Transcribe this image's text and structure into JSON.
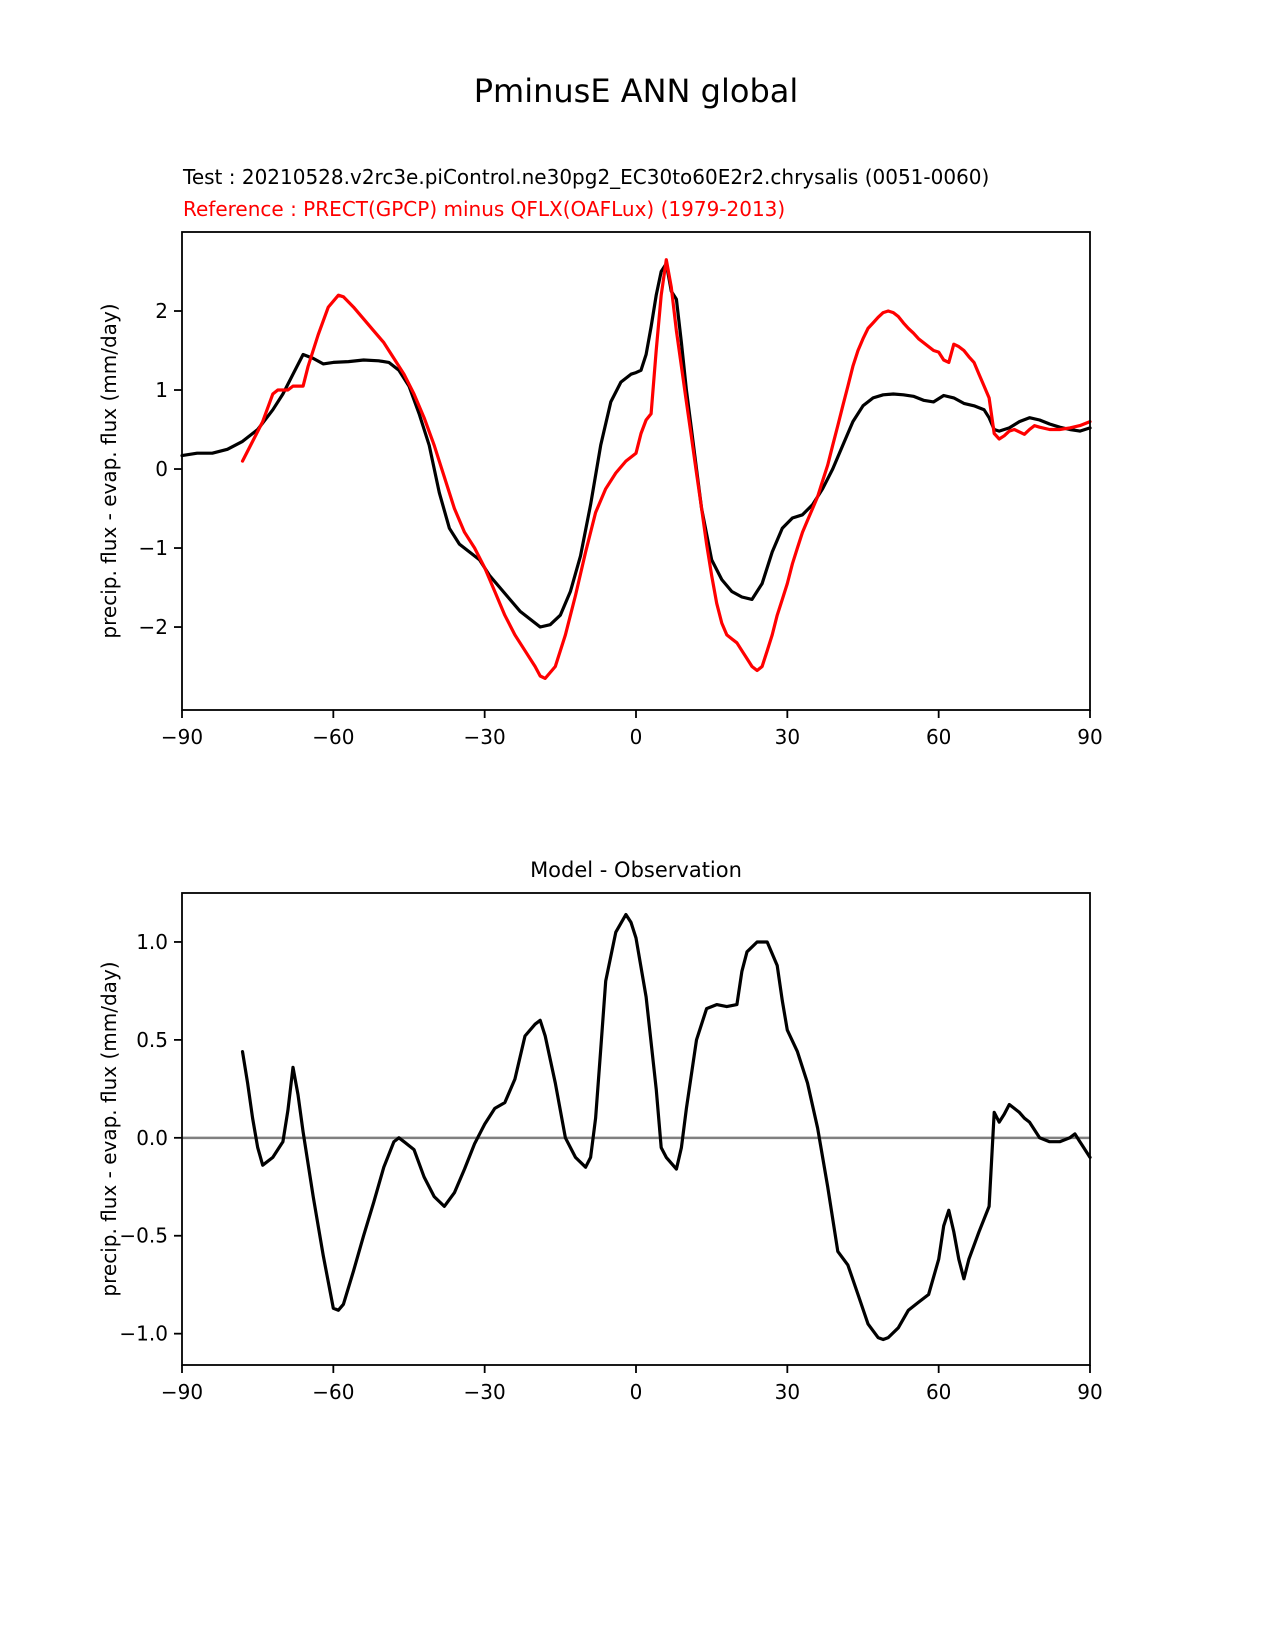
{
  "figure": {
    "title": "PminusE ANN global",
    "test_label": "Test : 20210528.v2rc3e.piControl.ne30pg2_EC30to60E2r2.chrysalis (0051-0060)",
    "reference_label": "Reference : PRECT(GPCP) minus QFLX(OAFLux) (1979-2013)",
    "colors": {
      "test": "#000000",
      "reference": "#ff0000",
      "zero_line": "#808080",
      "frame": "#000000"
    }
  },
  "chart_data": [
    {
      "type": "line",
      "title": "",
      "xlabel": "",
      "ylabel": "precip. flux - evap. flux (mm/day)",
      "xlim": [
        -90,
        90
      ],
      "ylim": [
        -3.05,
        3.0
      ],
      "grid": false,
      "legend": "none",
      "zero_line": false,
      "xticks": [
        -90,
        -60,
        -30,
        0,
        30,
        60,
        90
      ],
      "xtick_labels": [
        "−90",
        "−60",
        "−30",
        "0",
        "30",
        "60",
        "90"
      ],
      "yticks": [
        -2,
        -1,
        0,
        1,
        2
      ],
      "ytick_labels": [
        "−2",
        "−1",
        "0",
        "1",
        "2"
      ],
      "series": [
        {
          "name": "Test",
          "color": "#000000",
          "x": [
            -90,
            -87,
            -84,
            -81,
            -78,
            -75,
            -72,
            -70,
            -68,
            -66,
            -64,
            -62,
            -60,
            -57,
            -54,
            -51,
            -49,
            -47,
            -45,
            -43,
            -41,
            -39,
            -37,
            -35,
            -33,
            -31,
            -29,
            -27,
            -25,
            -23,
            -21,
            -19,
            -17,
            -15,
            -13,
            -11,
            -9,
            -7,
            -5,
            -3,
            -1,
            0,
            1,
            2,
            3,
            4,
            5,
            6,
            7,
            8,
            9,
            10,
            11,
            12,
            13,
            15,
            17,
            19,
            21,
            23,
            25,
            27,
            29,
            31,
            33,
            35,
            37,
            39,
            41,
            43,
            45,
            47,
            49,
            51,
            53,
            55,
            57,
            59,
            61,
            63,
            65,
            67,
            69,
            70,
            71,
            72,
            74,
            76,
            78,
            80,
            82,
            84,
            86,
            88,
            90
          ],
          "y": [
            0.17,
            0.2,
            0.2,
            0.25,
            0.35,
            0.5,
            0.75,
            0.95,
            1.2,
            1.45,
            1.4,
            1.33,
            1.35,
            1.36,
            1.38,
            1.37,
            1.35,
            1.25,
            1.05,
            0.7,
            0.3,
            -0.3,
            -0.75,
            -0.95,
            -1.05,
            -1.15,
            -1.35,
            -1.5,
            -1.65,
            -1.8,
            -1.9,
            -2.0,
            -1.97,
            -1.85,
            -1.55,
            -1.1,
            -0.45,
            0.3,
            0.85,
            1.1,
            1.2,
            1.22,
            1.25,
            1.45,
            1.8,
            2.2,
            2.5,
            2.6,
            2.25,
            2.15,
            1.6,
            1.0,
            0.5,
            0.0,
            -0.5,
            -1.15,
            -1.4,
            -1.55,
            -1.62,
            -1.65,
            -1.45,
            -1.05,
            -0.75,
            -0.62,
            -0.58,
            -0.45,
            -0.25,
            0.0,
            0.3,
            0.6,
            0.8,
            0.9,
            0.94,
            0.95,
            0.94,
            0.92,
            0.87,
            0.85,
            0.93,
            0.9,
            0.83,
            0.8,
            0.75,
            0.65,
            0.5,
            0.48,
            0.52,
            0.6,
            0.65,
            0.62,
            0.57,
            0.53,
            0.5,
            0.48,
            0.52
          ]
        },
        {
          "name": "Reference",
          "color": "#ff0000",
          "x": [
            -78,
            -76,
            -74,
            -72,
            -71,
            -69,
            -68,
            -66,
            -65,
            -63,
            -61,
            -59,
            -58,
            -56,
            -54,
            -52,
            -50,
            -48,
            -46,
            -44,
            -42,
            -40,
            -38,
            -36,
            -34,
            -32,
            -30,
            -28,
            -26,
            -24,
            -22,
            -20,
            -19,
            -18,
            -16,
            -14,
            -12,
            -10,
            -8,
            -6,
            -4,
            -2,
            0,
            1,
            2,
            3,
            4,
            5,
            6,
            7,
            8,
            9,
            10,
            11,
            12,
            13,
            14,
            15,
            16,
            17,
            18,
            19,
            20,
            21,
            22,
            23,
            24,
            25,
            26,
            27,
            28,
            29,
            30,
            31,
            32,
            33,
            34,
            35,
            36,
            37,
            38,
            39,
            40,
            41,
            42,
            43,
            44,
            45,
            46,
            47,
            48,
            49,
            50,
            51,
            52,
            53,
            54,
            55,
            56,
            57,
            58,
            59,
            60,
            61,
            62,
            63,
            64,
            65,
            66,
            67,
            68,
            69,
            70,
            71,
            72,
            73,
            74,
            75,
            76,
            77,
            78,
            79,
            80,
            82,
            84,
            86,
            88,
            90
          ],
          "y": [
            0.1,
            0.35,
            0.6,
            0.95,
            1.0,
            1.0,
            1.05,
            1.05,
            1.3,
            1.7,
            2.05,
            2.2,
            2.18,
            2.05,
            1.9,
            1.75,
            1.6,
            1.4,
            1.2,
            0.95,
            0.65,
            0.3,
            -0.1,
            -0.5,
            -0.8,
            -1.0,
            -1.25,
            -1.55,
            -1.85,
            -2.1,
            -2.3,
            -2.5,
            -2.62,
            -2.65,
            -2.5,
            -2.1,
            -1.6,
            -1.05,
            -0.55,
            -0.25,
            -0.05,
            0.1,
            0.2,
            0.45,
            0.62,
            0.7,
            1.5,
            2.2,
            2.65,
            2.3,
            1.75,
            1.3,
            0.85,
            0.4,
            -0.05,
            -0.5,
            -0.95,
            -1.35,
            -1.7,
            -1.95,
            -2.1,
            -2.15,
            -2.2,
            -2.3,
            -2.4,
            -2.5,
            -2.55,
            -2.5,
            -2.3,
            -2.1,
            -1.85,
            -1.65,
            -1.45,
            -1.2,
            -1.0,
            -0.8,
            -0.65,
            -0.5,
            -0.35,
            -0.15,
            0.05,
            0.3,
            0.55,
            0.8,
            1.05,
            1.3,
            1.5,
            1.65,
            1.78,
            1.85,
            1.92,
            1.98,
            2.0,
            1.98,
            1.93,
            1.85,
            1.78,
            1.72,
            1.65,
            1.6,
            1.55,
            1.5,
            1.48,
            1.38,
            1.35,
            1.58,
            1.55,
            1.5,
            1.42,
            1.35,
            1.2,
            1.05,
            0.9,
            0.45,
            0.38,
            0.42,
            0.48,
            0.5,
            0.47,
            0.44,
            0.5,
            0.55,
            0.53,
            0.5,
            0.5,
            0.52,
            0.55,
            0.6
          ]
        }
      ]
    },
    {
      "type": "line",
      "title": "Model - Observation",
      "xlabel": "",
      "ylabel": "precip. flux - evap. flux (mm/day)",
      "xlim": [
        -90,
        90
      ],
      "ylim": [
        -1.16,
        1.25
      ],
      "grid": false,
      "legend": "none",
      "zero_line": true,
      "xticks": [
        -90,
        -60,
        -30,
        0,
        30,
        60,
        90
      ],
      "xtick_labels": [
        "−90",
        "−60",
        "−30",
        "0",
        "30",
        "60",
        "90"
      ],
      "yticks": [
        -1.0,
        -0.5,
        0.0,
        0.5,
        1.0
      ],
      "ytick_labels": [
        "−1.0",
        "−0.5",
        "0.0",
        "0.5",
        "1.0"
      ],
      "series": [
        {
          "name": "Model minus Observation",
          "color": "#000000",
          "x": [
            -78,
            -77,
            -76,
            -75,
            -74,
            -72,
            -70,
            -69,
            -68,
            -67,
            -66,
            -64,
            -62,
            -60,
            -59,
            -58,
            -56,
            -54,
            -52,
            -50,
            -48,
            -47,
            -46,
            -44,
            -42,
            -40,
            -38,
            -36,
            -34,
            -32,
            -30,
            -28,
            -26,
            -24,
            -22,
            -20,
            -19,
            -18,
            -16,
            -14,
            -12,
            -10,
            -9,
            -8,
            -7,
            -6,
            -4,
            -2,
            -1,
            0,
            2,
            4,
            5,
            6,
            8,
            9,
            10,
            12,
            14,
            16,
            18,
            20,
            21,
            22,
            24,
            26,
            28,
            29,
            30,
            32,
            34,
            36,
            38,
            40,
            42,
            44,
            46,
            48,
            49,
            50,
            52,
            54,
            56,
            58,
            60,
            61,
            62,
            63,
            64,
            65,
            66,
            68,
            70,
            71,
            72,
            73,
            74,
            75,
            76,
            77,
            78,
            80,
            82,
            84,
            86,
            87,
            88,
            89,
            90
          ],
          "y": [
            0.44,
            0.28,
            0.1,
            -0.05,
            -0.14,
            -0.1,
            -0.02,
            0.14,
            0.36,
            0.22,
            0.03,
            -0.3,
            -0.6,
            -0.87,
            -0.88,
            -0.85,
            -0.68,
            -0.5,
            -0.33,
            -0.15,
            -0.02,
            0.0,
            -0.02,
            -0.06,
            -0.2,
            -0.3,
            -0.35,
            -0.28,
            -0.16,
            -0.03,
            0.07,
            0.15,
            0.18,
            0.3,
            0.52,
            0.58,
            0.6,
            0.52,
            0.28,
            0.0,
            -0.1,
            -0.15,
            -0.1,
            0.1,
            0.45,
            0.8,
            1.05,
            1.14,
            1.1,
            1.02,
            0.72,
            0.25,
            -0.05,
            -0.1,
            -0.16,
            -0.05,
            0.15,
            0.5,
            0.66,
            0.68,
            0.67,
            0.68,
            0.85,
            0.95,
            1.0,
            1.0,
            0.88,
            0.7,
            0.55,
            0.44,
            0.28,
            0.05,
            -0.25,
            -0.58,
            -0.65,
            -0.8,
            -0.95,
            -1.02,
            -1.03,
            -1.02,
            -0.97,
            -0.88,
            -0.84,
            -0.8,
            -0.62,
            -0.45,
            -0.37,
            -0.48,
            -0.62,
            -0.72,
            -0.62,
            -0.48,
            -0.35,
            0.13,
            0.08,
            0.12,
            0.17,
            0.15,
            0.13,
            0.1,
            0.08,
            0.0,
            -0.02,
            -0.02,
            0.0,
            0.02,
            -0.02,
            -0.06,
            -0.1
          ]
        }
      ]
    }
  ]
}
